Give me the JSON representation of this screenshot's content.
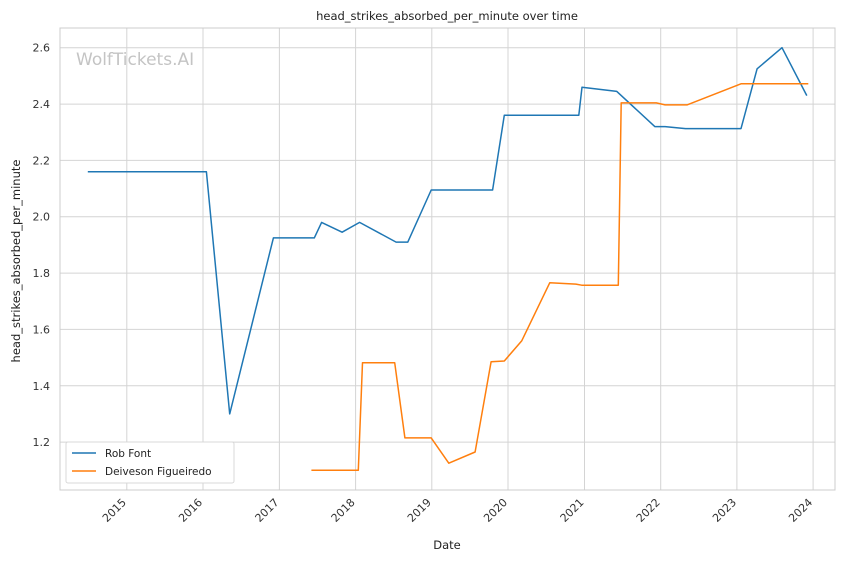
{
  "chart_data": {
    "type": "line",
    "title": "head_strikes_absorbed_per_minute over time",
    "xlabel": "Date",
    "ylabel": "head_strikes_absorbed_per_minute",
    "watermark": "WolfTickets.AI",
    "x_ticks": [
      "2015",
      "2016",
      "2017",
      "2018",
      "2019",
      "2020",
      "2021",
      "2022",
      "2023",
      "2024"
    ],
    "y_ticks": [
      "1.2",
      "1.4",
      "1.6",
      "1.8",
      "2.0",
      "2.2",
      "2.4",
      "2.6"
    ],
    "xlim": [
      "2014-02-15",
      "2024-04-15"
    ],
    "ylim": [
      1.03,
      2.67
    ],
    "grid": true,
    "legend_position": "lower-left",
    "series": [
      {
        "name": "Rob Font",
        "color": "#1f77b4",
        "points": [
          [
            "2014-06-28",
            2.16
          ],
          [
            "2016-01-17",
            2.16
          ],
          [
            "2016-05-08",
            1.3
          ],
          [
            "2016-12-03",
            1.925
          ],
          [
            "2017-06-17",
            1.925
          ],
          [
            "2017-07-22",
            1.98
          ],
          [
            "2017-10-28",
            1.945
          ],
          [
            "2018-01-20",
            1.98
          ],
          [
            "2018-07-14",
            1.91
          ],
          [
            "2018-09-08",
            1.91
          ],
          [
            "2018-12-29",
            2.095
          ],
          [
            "2019-10-19",
            2.095
          ],
          [
            "2019-12-14",
            2.36
          ],
          [
            "2020-12-05",
            2.36
          ],
          [
            "2020-12-20",
            2.46
          ],
          [
            "2021-06-05",
            2.445
          ],
          [
            "2021-12-04",
            2.32
          ],
          [
            "2022-01-22",
            2.32
          ],
          [
            "2022-04-30",
            2.313
          ],
          [
            "2023-01-21",
            2.313
          ],
          [
            "2023-04-08",
            2.525
          ],
          [
            "2023-08-05",
            2.6
          ],
          [
            "2023-12-02",
            2.43
          ]
        ]
      },
      {
        "name": "Deiveson Figueiredo",
        "color": "#ff7f0e",
        "points": [
          [
            "2017-06-03",
            1.1
          ],
          [
            "2018-01-14",
            1.1
          ],
          [
            "2018-02-03",
            1.482
          ],
          [
            "2018-07-07",
            1.482
          ],
          [
            "2018-08-25",
            1.215
          ],
          [
            "2018-12-29",
            1.215
          ],
          [
            "2019-03-23",
            1.125
          ],
          [
            "2019-07-27",
            1.165
          ],
          [
            "2019-10-12",
            1.485
          ],
          [
            "2019-12-14",
            1.488
          ],
          [
            "2020-03-07",
            1.56
          ],
          [
            "2020-07-19",
            1.766
          ],
          [
            "2020-11-21",
            1.761
          ],
          [
            "2020-12-19",
            1.757
          ],
          [
            "2021-06-12",
            1.757
          ],
          [
            "2021-06-26",
            2.404
          ],
          [
            "2021-12-11",
            2.404
          ],
          [
            "2022-01-22",
            2.397
          ],
          [
            "2022-05-07",
            2.397
          ],
          [
            "2023-01-21",
            2.472
          ],
          [
            "2023-04-08",
            2.472
          ],
          [
            "2023-12-09",
            2.472
          ]
        ]
      }
    ]
  }
}
